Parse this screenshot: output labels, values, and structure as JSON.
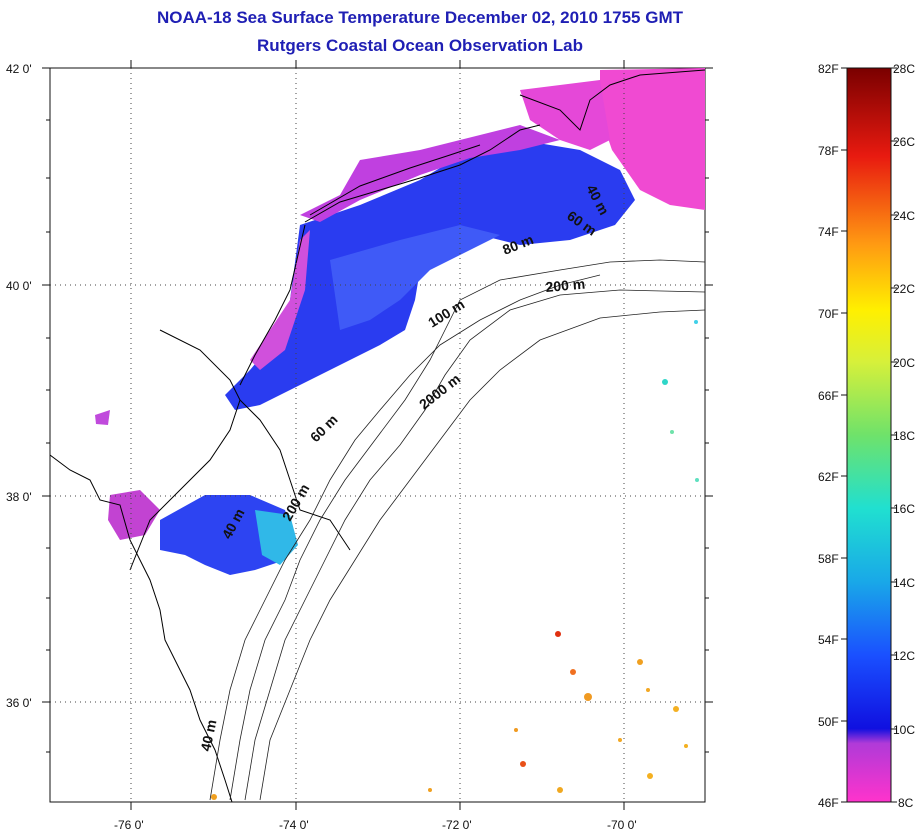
{
  "title": {
    "line1": "NOAA-18 Sea Surface Temperature December 02, 2010 1755 GMT",
    "line2": "Rutgers Coastal Ocean Observation Lab"
  },
  "axes": {
    "lon_ticks": [
      {
        "value": -76,
        "label": "-76 0'"
      },
      {
        "value": -74,
        "label": "-74 0'"
      },
      {
        "value": -72,
        "label": "-72 0'"
      },
      {
        "value": -70,
        "label": "-70 0'"
      }
    ],
    "lat_ticks": [
      {
        "value": 42,
        "label": "42 0'"
      },
      {
        "value": 40,
        "label": "40 0'"
      },
      {
        "value": 38,
        "label": "38 0'"
      },
      {
        "value": 36,
        "label": "36 0'"
      }
    ],
    "lon_range": [
      -77,
      -69
    ],
    "lat_range": [
      35,
      42
    ]
  },
  "contour_labels": [
    {
      "text": "40 m"
    },
    {
      "text": "60 m"
    },
    {
      "text": "80 m"
    },
    {
      "text": "200 m"
    },
    {
      "text": "100 m"
    },
    {
      "text": "2000 m"
    },
    {
      "text": "60 m"
    },
    {
      "text": "40 m"
    },
    {
      "text": "200 m"
    },
    {
      "text": "40 m"
    }
  ],
  "colorbar": {
    "fahrenheit": [
      "82F",
      "78F",
      "74F",
      "70F",
      "66F",
      "62F",
      "58F",
      "54F",
      "50F",
      "46F"
    ],
    "celsius": [
      "28C",
      "26C",
      "24C",
      "22C",
      "20C",
      "18C",
      "16C",
      "14C",
      "12C",
      "10C",
      "8C"
    ],
    "range_c": [
      8,
      28
    ]
  }
}
